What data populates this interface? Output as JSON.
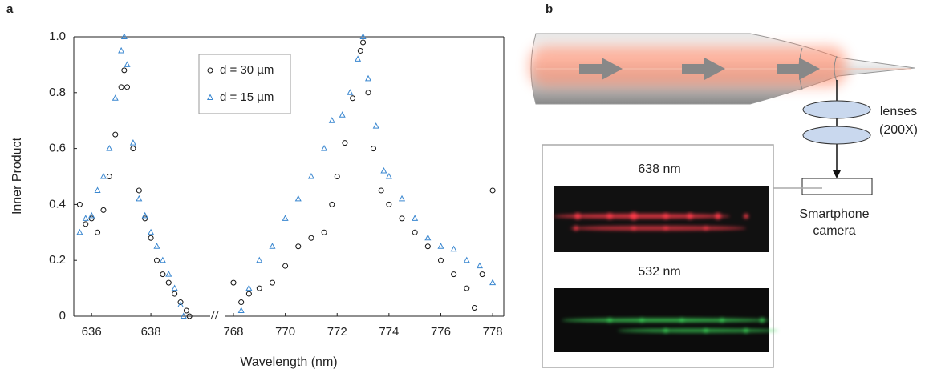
{
  "panel_labels": [
    "a",
    "b"
  ],
  "chart_data": [
    {
      "type": "scatter",
      "xlabel": "Wavelength (nm)",
      "ylabel": "Inner Product",
      "xlim": [
        635.4,
        640.0
      ],
      "xticks": [
        636,
        638
      ],
      "ylim": [
        0,
        1.0
      ],
      "yticks": [
        0,
        0.2,
        0.4,
        0.6,
        0.8,
        {
          "value": 1,
          "label": "1.0"
        }
      ],
      "legend": "top",
      "series": [
        {
          "name": "d = 30 µm",
          "color": "#111111",
          "marker": "circle",
          "x": [
            635.6,
            635.8,
            636.0,
            636.2,
            636.4,
            636.6,
            636.8,
            637.0,
            637.1,
            637.2,
            637.4,
            637.6,
            637.8,
            638.0,
            638.2,
            638.4,
            638.6,
            638.8,
            639.0,
            639.2,
            639.3
          ],
          "values": [
            0.4,
            0.33,
            0.35,
            0.3,
            0.38,
            0.5,
            0.65,
            0.82,
            0.88,
            0.82,
            0.6,
            0.45,
            0.35,
            0.28,
            0.2,
            0.15,
            0.12,
            0.08,
            0.05,
            0.02,
            0
          ]
        },
        {
          "name": "d = 15 µm",
          "color": "#3a87d0",
          "marker": "triangle",
          "x": [
            635.6,
            635.8,
            636.0,
            636.2,
            636.4,
            636.6,
            636.8,
            637.0,
            637.1,
            637.2,
            637.4,
            637.6,
            637.8,
            638.0,
            638.2,
            638.4,
            638.6,
            638.8,
            639.0,
            639.1
          ],
          "values": [
            0.3,
            0.35,
            0.36,
            0.45,
            0.5,
            0.6,
            0.78,
            0.95,
            1.0,
            0.9,
            0.62,
            0.42,
            0.36,
            0.3,
            0.25,
            0.2,
            0.15,
            0.1,
            0.04,
            0
          ]
        }
      ]
    },
    {
      "type": "scatter",
      "xlim": [
        767.66,
        778.43
      ],
      "xticks": [
        768,
        770,
        772,
        774,
        776,
        778
      ],
      "ylim": [
        0,
        1.0
      ],
      "series": [
        {
          "color": "#111111",
          "marker": "circle",
          "x": [
            768.0,
            768.3,
            768.6,
            769.0,
            769.5,
            770.0,
            770.5,
            771.0,
            771.5,
            771.8,
            772.0,
            772.3,
            772.6,
            772.9,
            773.0,
            773.2,
            773.4,
            773.7,
            774.0,
            774.5,
            775.0,
            775.5,
            776.0,
            776.5,
            777.0,
            777.3,
            777.6,
            778.0
          ],
          "values": [
            0.12,
            0.05,
            0.08,
            0.1,
            0.12,
            0.18,
            0.25,
            0.28,
            0.3,
            0.4,
            0.5,
            0.62,
            0.78,
            0.95,
            0.98,
            0.8,
            0.6,
            0.45,
            0.4,
            0.35,
            0.3,
            0.25,
            0.2,
            0.15,
            0.1,
            0.03,
            0.15,
            0.45
          ]
        },
        {
          "color": "#3a87d0",
          "marker": "triangle",
          "x": [
            768.3,
            768.6,
            769.0,
            769.5,
            770.0,
            770.5,
            771.0,
            771.5,
            771.8,
            772.2,
            772.5,
            772.8,
            773.0,
            773.2,
            773.5,
            773.8,
            774.0,
            774.5,
            775.0,
            775.5,
            776.0,
            776.5,
            777.0,
            777.5,
            778.0
          ],
          "values": [
            0.02,
            0.1,
            0.2,
            0.25,
            0.35,
            0.42,
            0.5,
            0.6,
            0.7,
            0.72,
            0.8,
            0.92,
            1.0,
            0.85,
            0.68,
            0.52,
            0.5,
            0.42,
            0.35,
            0.28,
            0.25,
            0.24,
            0.2,
            0.18,
            0.12
          ]
        }
      ]
    }
  ],
  "diagram": {
    "lenses": "lenses",
    "magnification": "(200X)",
    "camera_line1": "Smartphone",
    "camera_line2": "camera",
    "image_red": "638 nm",
    "image_green": "532 nm"
  }
}
